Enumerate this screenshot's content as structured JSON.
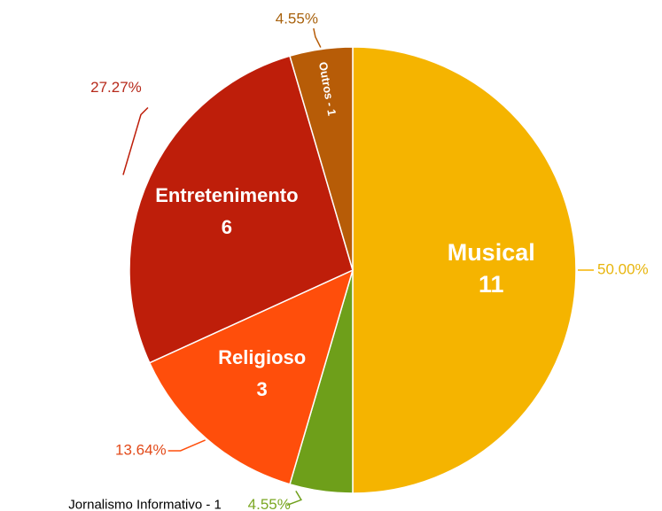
{
  "chart_data": {
    "type": "pie",
    "title": "",
    "slices": [
      {
        "label": "Musical",
        "value": 11,
        "percent": "50.00%",
        "color": "#F5B400"
      },
      {
        "label": "Jornalismo Informativo",
        "value": 1,
        "percent": "4.55%",
        "color": "#6E9F1A"
      },
      {
        "label": "Religioso",
        "value": 3,
        "percent": "13.64%",
        "color": "#FF4E0B"
      },
      {
        "label": "Entretenimento",
        "value": 6,
        "percent": "27.27%",
        "color": "#BE1E0A"
      },
      {
        "label": "Outros",
        "value": 1,
        "percent": "4.55%",
        "color": "#B75C07"
      }
    ],
    "outside_label_text": "Jornalismo Informativo - 1",
    "inner_label_outros": "Outros - 1"
  }
}
